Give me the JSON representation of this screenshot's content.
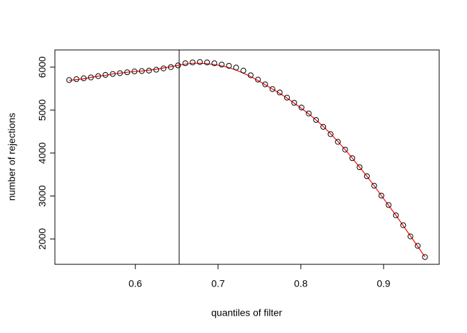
{
  "chart_data": {
    "type": "scatter",
    "xlabel": "quantiles of filter",
    "ylabel": "number of rejections",
    "x": [
      0.52,
      0.5288,
      0.5376,
      0.5463,
      0.5551,
      0.5639,
      0.5727,
      0.5814,
      0.5902,
      0.599,
      0.6078,
      0.6165,
      0.6253,
      0.6341,
      0.6429,
      0.6516,
      0.6604,
      0.6692,
      0.678,
      0.6867,
      0.6955,
      0.7043,
      0.7131,
      0.7218,
      0.7306,
      0.7394,
      0.7482,
      0.7569,
      0.7657,
      0.7745,
      0.7833,
      0.792,
      0.8008,
      0.8096,
      0.8184,
      0.8271,
      0.8359,
      0.8447,
      0.8535,
      0.8622,
      0.871,
      0.8798,
      0.8886,
      0.8973,
      0.9061,
      0.9149,
      0.9237,
      0.9324,
      0.9412,
      0.95
    ],
    "series": [
      {
        "color": "#000000",
        "values": [
          5700,
          5720,
          5740,
          5760,
          5790,
          5820,
          5840,
          5860,
          5880,
          5900,
          5910,
          5920,
          5940,
          5970,
          6000,
          6040,
          6090,
          6110,
          6120,
          6110,
          6090,
          6060,
          6030,
          5990,
          5920,
          5810,
          5710,
          5600,
          5490,
          5410,
          5290,
          5170,
          5060,
          4920,
          4770,
          4610,
          4440,
          4260,
          4080,
          3880,
          3670,
          3460,
          3240,
          3010,
          2790,
          2550,
          2320,
          2060,
          1840,
          1580
        ]
      },
      {
        "color": "#ff0000",
        "values": [
          5690,
          5710,
          5730,
          5760,
          5790,
          5810,
          5840,
          5860,
          5880,
          5900,
          5910,
          5930,
          5950,
          5980,
          6010,
          6040,
          6070,
          6090,
          6090,
          6080,
          6060,
          6030,
          5990,
          5930,
          5860,
          5780,
          5690,
          5590,
          5490,
          5390,
          5280,
          5160,
          5040,
          4910,
          4770,
          4620,
          4450,
          4270,
          4080,
          3880,
          3670,
          3460,
          3240,
          3010,
          2780,
          2550,
          2310,
          2070,
          1830,
          1580
        ]
      }
    ],
    "vline": 0.653,
    "xlim": [
      0.5028,
      0.9672
    ],
    "ylim": [
      1410,
      6400
    ],
    "xticks": [
      0.6,
      0.7,
      0.8,
      0.9
    ],
    "yticks": [
      2000,
      3000,
      4000,
      5000,
      6000
    ]
  }
}
